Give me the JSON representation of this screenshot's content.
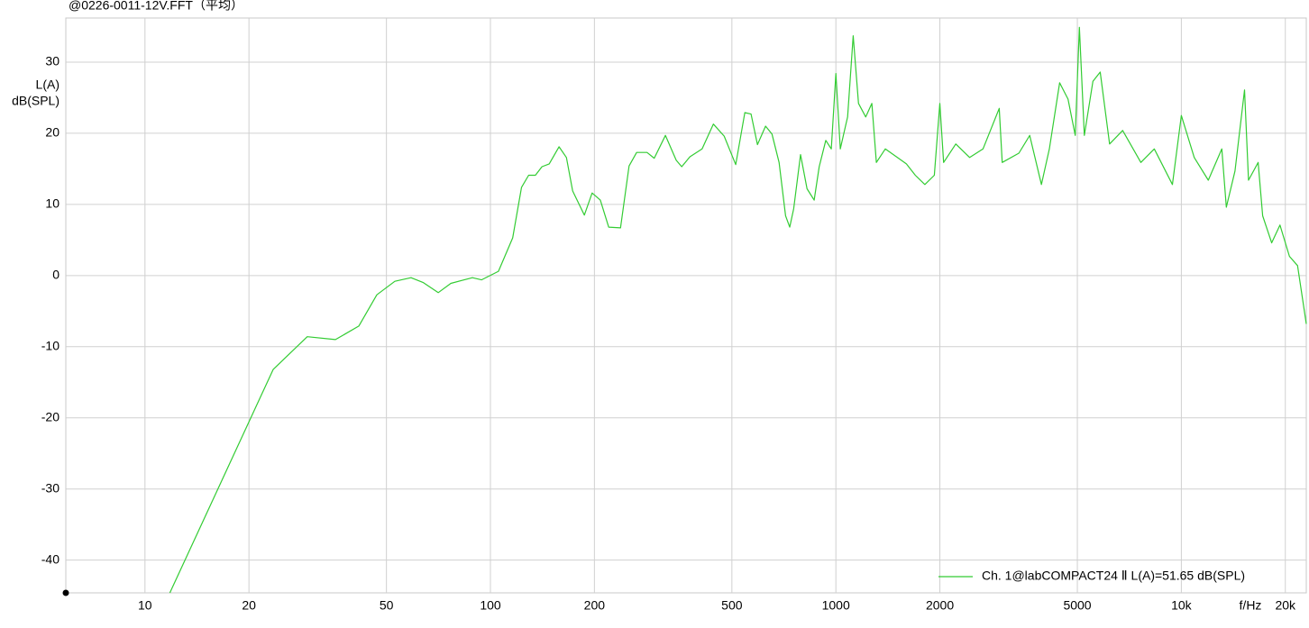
{
  "chart_data": {
    "type": "line",
    "title": "@0226-0011-12V.FFT（平均）",
    "ylabel": [
      "L(A)",
      "dB(SPL)"
    ],
    "xlabel": "f/Hz",
    "log_x": true,
    "grid": true,
    "legend": "bottom-right",
    "xlim": [
      5.9,
      23000
    ],
    "ylim": [
      -44.6,
      36.2
    ],
    "xticks": [
      10,
      20,
      50,
      100,
      200,
      500,
      1000,
      2000,
      5000,
      {
        "value": 10000,
        "label": "10k"
      },
      {
        "value": 20000,
        "label": "20k"
      }
    ],
    "yticks": [
      30,
      20,
      10,
      0,
      -10,
      -20,
      -30,
      -40
    ],
    "x": [
      11.8,
      23.5,
      29.5,
      35.6,
      41.6,
      46.9,
      52.9,
      58.9,
      64,
      70.6,
      76.8,
      88.7,
      94.2,
      105.5,
      116,
      123,
      129,
      135,
      141,
      148,
      158,
      166,
      173,
      187,
      197,
      208,
      220,
      238,
      252,
      265,
      284,
      298,
      321,
      345,
      358,
      378,
      410,
      442,
      475,
      513,
      545,
      568,
      593,
      626,
      653,
      685,
      715,
      735,
      755,
      790,
      825,
      865,
      895,
      935,
      970,
      1000,
      1030,
      1081,
      1122,
      1163,
      1220,
      1271,
      1310,
      1390,
      1507,
      1600,
      1698,
      1810,
      1928,
      2000,
      2050,
      2224,
      2440,
      2666,
      2970,
      3030,
      3386,
      3640,
      3936,
      4150,
      4443,
      4700,
      4930,
      5069,
      5240,
      5546,
      5822,
      6200,
      6762,
      7634,
      8350,
      9423,
      10000,
      10900,
      11970,
      13100,
      13500,
      14300,
      15240,
      15650,
      16690,
      17200,
      18260,
      19300,
      20560,
      21700,
      23000
    ],
    "series": [
      {
        "name": "Ch. 1@labCOMPACT24 Ⅱ L(A)=51.65 dB(SPL)",
        "color": "#33cc33",
        "values": [
          -44.6,
          -13.2,
          -8.6,
          -9.0,
          -7.1,
          -2.7,
          -0.8,
          -0.3,
          -1.0,
          -2.4,
          -1.1,
          -0.3,
          -0.6,
          0.6,
          5.3,
          12.4,
          14.1,
          14.1,
          15.3,
          15.7,
          18.1,
          16.6,
          11.9,
          8.5,
          11.6,
          10.6,
          6.8,
          6.7,
          15.4,
          17.3,
          17.3,
          16.5,
          19.7,
          16.2,
          15.3,
          16.7,
          17.8,
          21.3,
          19.6,
          15.6,
          22.9,
          22.7,
          18.4,
          21.0,
          19.9,
          15.9,
          8.4,
          6.8,
          9.4,
          17.0,
          12.2,
          10.6,
          15.3,
          19.0,
          17.8,
          28.4,
          17.8,
          22.3,
          33.7,
          24.2,
          22.3,
          24.2,
          15.9,
          17.8,
          16.6,
          15.7,
          14.1,
          12.8,
          14.1,
          24.2,
          15.9,
          18.5,
          16.6,
          17.8,
          23.5,
          15.9,
          17.2,
          19.7,
          12.8,
          17.8,
          27.1,
          24.8,
          19.7,
          34.9,
          19.7,
          27.3,
          28.6,
          18.5,
          20.4,
          15.9,
          17.8,
          12.8,
          22.5,
          16.6,
          13.4,
          17.8,
          9.6,
          14.7,
          26.1,
          13.4,
          15.9,
          8.4,
          4.6,
          7.1,
          2.7,
          1.4,
          -6.8
        ]
      }
    ]
  }
}
